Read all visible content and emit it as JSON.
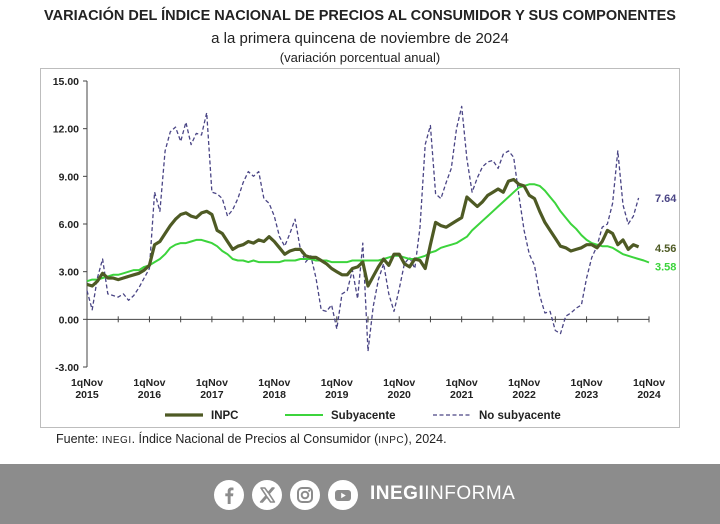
{
  "header": {
    "title": "VARIACIÓN DEL ÍNDICE NACIONAL DE PRECIOS AL CONSUMIDOR Y SUS COMPONENTES",
    "subtitle": "a la primera quincena de noviembre de 2024",
    "note": "(variación porcentual anual)"
  },
  "source": {
    "prefix": "Fuente: ",
    "org": "INEGI",
    "mid": ". Índice Nacional de Precios al Consumidor (",
    "abbr": "INPC",
    "suffix": "), 2024."
  },
  "footer": {
    "brand_bold": "INEGI",
    "brand_light": "INFORMA",
    "icons": [
      "facebook-icon",
      "x-icon",
      "instagram-icon",
      "youtube-icon"
    ]
  },
  "colors": {
    "inpc": "#4e5a24",
    "subyacente": "#3cd43c",
    "no_subyacente": "#4a4585",
    "footer_bg": "#8c8c8c"
  },
  "chart_data": {
    "type": "line",
    "ylim": [
      -3,
      15
    ],
    "yticks": [
      "15.00",
      "12.00",
      "9.00",
      "6.00",
      "3.00",
      "0.00",
      "-3.00"
    ],
    "yvalues": [
      15,
      12,
      9,
      6,
      3,
      0,
      -3
    ],
    "xlim": [
      0,
      108
    ],
    "xticks": [
      {
        "x": 0,
        "label1": "1qNov",
        "label2": "2015"
      },
      {
        "x": 12,
        "label1": "1qNov",
        "label2": "2016"
      },
      {
        "x": 24,
        "label1": "1qNov",
        "label2": "2017"
      },
      {
        "x": 36,
        "label1": "1qNov",
        "label2": "2018"
      },
      {
        "x": 48,
        "label1": "1qNov",
        "label2": "2019"
      },
      {
        "x": 60,
        "label1": "1qNov",
        "label2": "2020"
      },
      {
        "x": 72,
        "label1": "1qNov",
        "label2": "2021"
      },
      {
        "x": 84,
        "label1": "1qNov",
        "label2": "2022"
      },
      {
        "x": 96,
        "label1": "1qNov",
        "label2": "2023"
      },
      {
        "x": 108,
        "label1": "1qNov",
        "label2": "2024"
      }
    ],
    "legend_position": "bottom",
    "series": [
      {
        "name": "INPC",
        "end_label": "4.56",
        "values": [
          2.2,
          2.1,
          2.4,
          2.9,
          2.6,
          2.6,
          2.5,
          2.6,
          2.7,
          2.8,
          2.9,
          3.1,
          3.4,
          4.7,
          4.9,
          5.4,
          5.9,
          6.3,
          6.6,
          6.7,
          6.5,
          6.4,
          6.7,
          6.8,
          6.6,
          5.6,
          5.4,
          4.9,
          4.4,
          4.6,
          4.7,
          4.9,
          4.8,
          5.0,
          4.9,
          5.2,
          4.9,
          4.5,
          4.1,
          4.3,
          4.4,
          4.4,
          4.0,
          3.9,
          3.9,
          3.7,
          3.5,
          3.2,
          3.0,
          2.8,
          2.8,
          3.2,
          3.3,
          3.6,
          2.1,
          2.7,
          3.3,
          3.8,
          3.4,
          4.1,
          4.1,
          3.5,
          3.3,
          3.8,
          3.7,
          3.2,
          4.7,
          6.1,
          5.9,
          5.8,
          6.0,
          6.2,
          6.4,
          7.7,
          7.4,
          7.1,
          7.4,
          7.8,
          8.0,
          8.2,
          8.0,
          8.7,
          8.8,
          8.5,
          8.4,
          7.8,
          7.6,
          6.8,
          6.1,
          5.6,
          5.1,
          4.6,
          4.5,
          4.3,
          4.4,
          4.5,
          4.7,
          4.7,
          4.5,
          4.9,
          5.6,
          5.4,
          4.7,
          5.0,
          4.4,
          4.7,
          4.56
        ]
      },
      {
        "name": "Subyacente",
        "end_label": "3.58",
        "values": [
          2.4,
          2.5,
          2.5,
          2.6,
          2.7,
          2.8,
          2.8,
          2.9,
          3.0,
          3.1,
          3.1,
          3.3,
          3.4,
          3.6,
          3.8,
          4.1,
          4.5,
          4.7,
          4.8,
          4.8,
          4.9,
          5.0,
          5.0,
          4.9,
          4.8,
          4.6,
          4.3,
          4.1,
          3.8,
          3.7,
          3.7,
          3.6,
          3.7,
          3.6,
          3.6,
          3.6,
          3.6,
          3.6,
          3.7,
          3.7,
          3.7,
          3.8,
          3.8,
          3.8,
          3.7,
          3.7,
          3.7,
          3.6,
          3.6,
          3.6,
          3.6,
          3.7,
          3.7,
          3.7,
          3.7,
          3.7,
          3.7,
          3.8,
          3.9,
          4.0,
          4.0,
          3.9,
          3.8,
          3.8,
          3.9,
          4.0,
          4.2,
          4.3,
          4.5,
          4.6,
          4.7,
          4.8,
          5.0,
          5.2,
          5.6,
          5.9,
          6.2,
          6.5,
          6.8,
          7.1,
          7.4,
          7.7,
          8.0,
          8.3,
          8.4,
          8.5,
          8.5,
          8.4,
          8.1,
          7.7,
          7.3,
          6.8,
          6.4,
          6.0,
          5.7,
          5.3,
          5.0,
          4.8,
          4.7,
          4.6,
          4.6,
          4.5,
          4.3,
          4.1,
          4.0,
          3.9,
          3.8,
          3.7,
          3.58
        ]
      },
      {
        "name": "No subyacente",
        "end_label": "7.64",
        "values": [
          1.8,
          0.6,
          2.6,
          3.8,
          1.6,
          1.5,
          1.4,
          1.6,
          1.2,
          1.5,
          2.0,
          2.6,
          3.2,
          8.0,
          6.8,
          10.6,
          11.8,
          12.1,
          11.2,
          12.4,
          11.0,
          11.7,
          11.6,
          13.0,
          8.0,
          7.9,
          7.6,
          6.5,
          6.9,
          7.6,
          8.6,
          9.3,
          9.0,
          9.3,
          7.6,
          7.3,
          6.5,
          5.2,
          4.6,
          5.4,
          6.3,
          4.4,
          3.6,
          4.0,
          2.6,
          0.6,
          0.5,
          0.9,
          -0.6,
          1.6,
          1.8,
          3.1,
          1.3,
          4.8,
          -2.0,
          0.8,
          2.5,
          3.5,
          1.6,
          0.5,
          1.9,
          3.5,
          3.9,
          3.2,
          5.8,
          11.0,
          12.2,
          7.9,
          7.6,
          8.6,
          9.5,
          12.0,
          13.4,
          10.1,
          8.0,
          8.9,
          9.6,
          9.9,
          10.0,
          9.5,
          10.4,
          10.6,
          10.2,
          7.8,
          5.6,
          4.1,
          3.4,
          1.5,
          0.4,
          0.5,
          -0.7,
          -0.9,
          0.2,
          0.4,
          0.7,
          0.9,
          2.6,
          3.9,
          4.6,
          5.8,
          6.0,
          7.3,
          10.6,
          7.2,
          6.0,
          6.5,
          7.64
        ]
      }
    ]
  }
}
